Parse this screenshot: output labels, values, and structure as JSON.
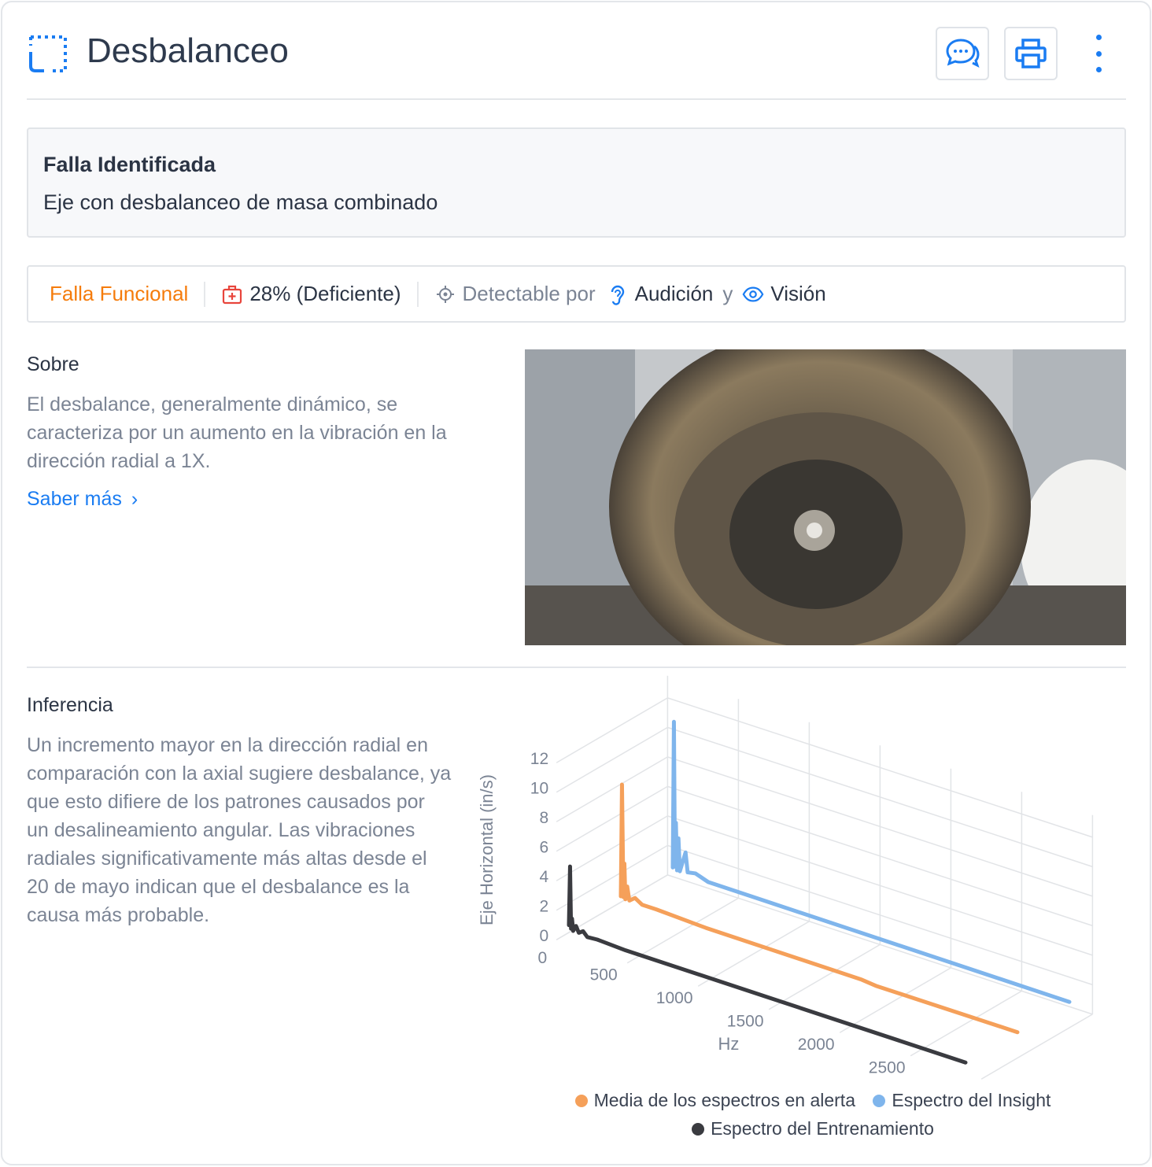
{
  "header": {
    "title": "Desbalanceo",
    "icon": "dashed-frame-icon",
    "actions": [
      {
        "icon": "chat-icon"
      },
      {
        "icon": "printer-icon"
      },
      {
        "icon": "kebab-menu-icon"
      }
    ]
  },
  "fault": {
    "heading": "Falla Identificada",
    "description": "Eje con desbalanceo de masa combinado"
  },
  "tags": {
    "category": "Falla Funcional",
    "health": "28% (Deficiente)",
    "detectable_label": "Detectable por",
    "hearing": "Audición",
    "conjunction": "y",
    "vision": "Visión"
  },
  "about": {
    "heading": "Sobre",
    "text": "El desbalance, generalmente dinámico, se caracteriza por un aumento en la vibración en la dirección radial a 1X.",
    "link": "Saber más"
  },
  "inference": {
    "heading": "Inferencia",
    "text": "Un incremento mayor en la dirección radial en comparación con la axial sugiere desbalance, ya que esto difiere de los patrones causados por un desalineamiento angular. Las vibraciones radiales significativamente más altas desde el 20 de mayo indican que el desbalance es la causa más probable."
  },
  "colors": {
    "accent": "#1a7cf2",
    "orange": "#f57c0c",
    "alert_series": "#f5a05a",
    "insight_series": "#7fb5ec",
    "training_series": "#3a3b40"
  },
  "chart_data": {
    "type": "line",
    "xlabel": "Hz",
    "ylabel": "Eje Horizontal (in/s)",
    "x_ticks": [
      "500",
      "1000",
      "1500",
      "2000",
      "2500"
    ],
    "y_ticks": [
      "0",
      "2",
      "4",
      "6",
      "8",
      "10",
      "12"
    ],
    "extra_y_tick": "0",
    "xlim": [
      0,
      2800
    ],
    "ylim": [
      0,
      12
    ],
    "grid": true,
    "legend": "bottom",
    "series": [
      {
        "name": "Espectro del Entrenamiento",
        "color": "#3a3b40",
        "points": [
          [
            0,
            0.5
          ],
          [
            8,
            4.5
          ],
          [
            15,
            0.3
          ],
          [
            22,
            1.0
          ],
          [
            30,
            0.2
          ],
          [
            50,
            0.6
          ],
          [
            70,
            0.2
          ],
          [
            100,
            0.4
          ],
          [
            130,
            0.1
          ],
          [
            200,
            0.15
          ],
          [
            400,
            0.05
          ],
          [
            2800,
            0
          ]
        ]
      },
      {
        "name": "Media de los espectros en alerta",
        "color": "#f5a05a",
        "points": [
          [
            0,
            0.4
          ],
          [
            8,
            8.0
          ],
          [
            18,
            0.4
          ],
          [
            25,
            2.7
          ],
          [
            32,
            0.3
          ],
          [
            45,
            1.2
          ],
          [
            60,
            0.3
          ],
          [
            100,
            0.6
          ],
          [
            150,
            0.3
          ],
          [
            250,
            0.3
          ],
          [
            600,
            0.15
          ],
          [
            1700,
            0.1
          ],
          [
            1800,
            0
          ],
          [
            2800,
            0
          ]
        ]
      },
      {
        "name": "Espectro del Insight",
        "color": "#7fb5ec",
        "points": [
          [
            0,
            0.3
          ],
          [
            8,
            10.2
          ],
          [
            15,
            0.4
          ],
          [
            22,
            3.4
          ],
          [
            30,
            0.2
          ],
          [
            40,
            2.4
          ],
          [
            50,
            0.2
          ],
          [
            90,
            1.6
          ],
          [
            105,
            0.3
          ],
          [
            160,
            0.4
          ],
          [
            250,
            0.1
          ],
          [
            2800,
            0
          ]
        ]
      }
    ],
    "legend_order": [
      "Media de los espectros en alerta",
      "Espectro del Insight",
      "Espectro del Entrenamiento"
    ]
  }
}
